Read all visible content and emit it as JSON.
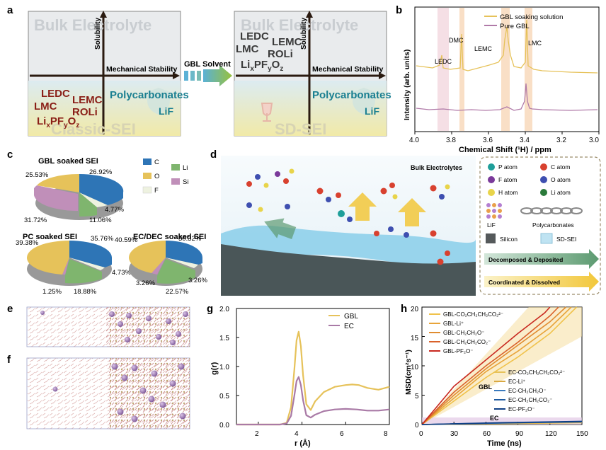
{
  "panel_labels": {
    "a": "a",
    "b": "b",
    "c": "c",
    "d": "d",
    "e": "e",
    "f": "f",
    "g": "g",
    "h": "h"
  },
  "panel_a": {
    "left_box": {
      "top_label": "Bulk Electrolyte",
      "bottom_label": "Classic-SEI",
      "y_axis": "Solubility",
      "x_axis": "Mechanical Stability",
      "organics": [
        "LEDC",
        "LMC",
        "LEMC",
        "ROLi",
        "LixPFyOz"
      ],
      "inorganics": [
        "Polycarbonates",
        "LiF"
      ]
    },
    "arrow_label": "GBL Solvent",
    "right_box": {
      "top_label": "Bulk Electrolyte",
      "bottom_label": "SD-SEI",
      "y_axis": "Solubility",
      "x_axis": "Mechanical Stability",
      "organics": [
        "LEDC",
        "LMC",
        "LEMC",
        "ROLi",
        "LixPFyOz"
      ],
      "inorganics": [
        "Polycarbonates",
        "LiF"
      ]
    }
  },
  "panel_b": {
    "legend": [
      "GBL soaking solution",
      "Pure GBL"
    ],
    "peaks": [
      "LEDC",
      "DMC",
      "LEMC",
      "LMC"
    ],
    "xlabel": "Chemical Shift (¹H) / ppm",
    "ylabel": "Intensity (arb. units)",
    "xticks": [
      "4.0",
      "3.8",
      "3.6",
      "3.4",
      "3.2",
      "3.0"
    ],
    "colors": {
      "soaking": "#e6c25a",
      "pure": "#b07aa8"
    }
  },
  "panel_c": {
    "legend": [
      "C",
      "O",
      "F",
      "Li",
      "Si"
    ],
    "colors": {
      "C": "#2e75b6",
      "O": "#e6c25a",
      "F": "#eef2e0",
      "Li": "#7fb56e",
      "Si": "#c08fb9"
    },
    "pies": [
      {
        "title": "GBL soaked SEI",
        "labels": [
          "26.92%",
          "4.77%",
          "11.06%",
          "31.72%",
          "25.53%"
        ]
      },
      {
        "title": "PC soaked SEI",
        "labels": [
          "35.76%",
          "4.73%",
          "18.88%",
          "1.25%",
          "39.38%"
        ]
      },
      {
        "title": "EC/DEC soaked SEI",
        "labels": [
          "30.32%",
          "3.26%",
          "22.57%",
          "3.26%",
          "40.59%"
        ]
      }
    ]
  },
  "panel_d": {
    "title": "Bulk Electrolytes",
    "legend": {
      "atoms": [
        "P atom",
        "C atom",
        "F atom",
        "O atom",
        "H atom",
        "Li atom"
      ],
      "materials": [
        "LiF",
        "Polycarbonates",
        "Silicon",
        "SD-SEI"
      ],
      "processes": [
        "Decomposed & Deposited",
        "Coordinated & Dissolved"
      ]
    }
  },
  "panel_g": {
    "chart_data": {
      "type": "line",
      "xlabel": "r (Å)",
      "ylabel": "g(r)",
      "xlim": [
        1,
        8
      ],
      "ylim": [
        0,
        2.0
      ],
      "xticks": [
        "2",
        "4",
        "6",
        "8"
      ],
      "yticks": [
        "0.0",
        "0.5",
        "1.0",
        "1.5",
        "2.0"
      ],
      "series": [
        {
          "name": "GBL",
          "color": "#e6c25a",
          "x": [
            1,
            3,
            3.3,
            3.5,
            3.65,
            3.75,
            3.85,
            3.95,
            4.05,
            4.2,
            4.4,
            4.6,
            5,
            5.5,
            6,
            6.3,
            6.6,
            7,
            7.5,
            8
          ],
          "y": [
            0,
            0,
            0.03,
            0.3,
            0.95,
            1.45,
            1.6,
            1.35,
            0.85,
            0.35,
            0.25,
            0.4,
            0.56,
            0.65,
            0.68,
            0.69,
            0.68,
            0.63,
            0.6,
            0.65
          ]
        },
        {
          "name": "EC",
          "color": "#a97aa6",
          "x": [
            1,
            3,
            3.3,
            3.5,
            3.65,
            3.75,
            3.85,
            3.95,
            4.05,
            4.2,
            4.4,
            4.6,
            5,
            5.5,
            6,
            6.5,
            7,
            7.5,
            8
          ],
          "y": [
            0,
            0,
            0.02,
            0.15,
            0.5,
            0.75,
            0.82,
            0.68,
            0.42,
            0.16,
            0.12,
            0.17,
            0.23,
            0.26,
            0.27,
            0.26,
            0.24,
            0.24,
            0.26
          ]
        }
      ]
    }
  },
  "panel_h": {
    "chart_data": {
      "type": "line",
      "xlabel": "Time (ns)",
      "ylabel": "MSD(cm²s⁻¹)",
      "xlim": [
        0,
        150
      ],
      "ylim": [
        0,
        20
      ],
      "xticks": [
        "0",
        "30",
        "60",
        "90",
        "120",
        "150"
      ],
      "yticks": [
        "0",
        "5",
        "10",
        "15",
        "20"
      ],
      "band_labels": [
        "GBL",
        "EC"
      ],
      "gbl_legend": [
        "GBL-CO₂CH₂CH₂CO₂²⁻",
        "GBL-Li⁺",
        "GBL-CH₂CH₂O⁻",
        "GBL-CH₂CH₂CO₂⁻",
        "GBL-PF₂O⁻"
      ],
      "ec_legend": [
        "EC-CO₂CH₂CH₂CO₂²⁻",
        "EC-Li⁺",
        "EC-CH₂CH₂O⁻",
        "EC-CH₂CH₂CO₂⁻",
        "EC-PF₂O⁻"
      ],
      "gbl_colors": [
        "#f0c24b",
        "#e8a43a",
        "#e08c30",
        "#d9612a",
        "#c8281f"
      ],
      "ec_colors": [
        "#e6c25a",
        "#d9a841",
        "#3a7abd",
        "#1e5aa0",
        "#0d3e85"
      ],
      "series": [
        {
          "name": "GBL-CO₂CH₂CH₂CO₂²⁻",
          "x": [
            0,
            30,
            60,
            90,
            120,
            145
          ],
          "y": [
            0,
            4,
            8,
            11.5,
            15.5,
            20
          ]
        },
        {
          "name": "GBL-Li⁺",
          "x": [
            0,
            30,
            60,
            90,
            120,
            140
          ],
          "y": [
            0,
            4.5,
            9,
            12.5,
            16.5,
            20
          ]
        },
        {
          "name": "GBL-CH₂CH₂O⁻",
          "x": [
            0,
            30,
            60,
            90,
            120,
            135
          ],
          "y": [
            0,
            5,
            9.5,
            13.5,
            17.5,
            20
          ]
        },
        {
          "name": "GBL-CH₂CH₂CO₂⁻",
          "x": [
            0,
            30,
            60,
            90,
            120,
            128
          ],
          "y": [
            0,
            5.5,
            10,
            14,
            18.5,
            20
          ]
        },
        {
          "name": "GBL-PF₂O⁻",
          "x": [
            0,
            30,
            60,
            90,
            115,
            120
          ],
          "y": [
            0,
            6.5,
            11,
            15.5,
            19,
            20
          ]
        },
        {
          "name": "EC-CO₂CH₂CH₂CO₂²⁻",
          "x": [
            0,
            75,
            150
          ],
          "y": [
            0,
            0.15,
            0.3
          ]
        },
        {
          "name": "EC-Li⁺",
          "x": [
            0,
            75,
            150
          ],
          "y": [
            0,
            0.2,
            0.35
          ]
        },
        {
          "name": "EC-CH₂CH₂O⁻",
          "x": [
            0,
            75,
            150
          ],
          "y": [
            0,
            0.25,
            0.45
          ]
        },
        {
          "name": "EC-CH₂CH₂CO₂⁻",
          "x": [
            0,
            75,
            150
          ],
          "y": [
            0,
            0.28,
            0.5
          ]
        },
        {
          "name": "EC-PF₂O⁻",
          "x": [
            0,
            75,
            150
          ],
          "y": [
            0,
            0.32,
            0.55
          ]
        }
      ]
    }
  }
}
